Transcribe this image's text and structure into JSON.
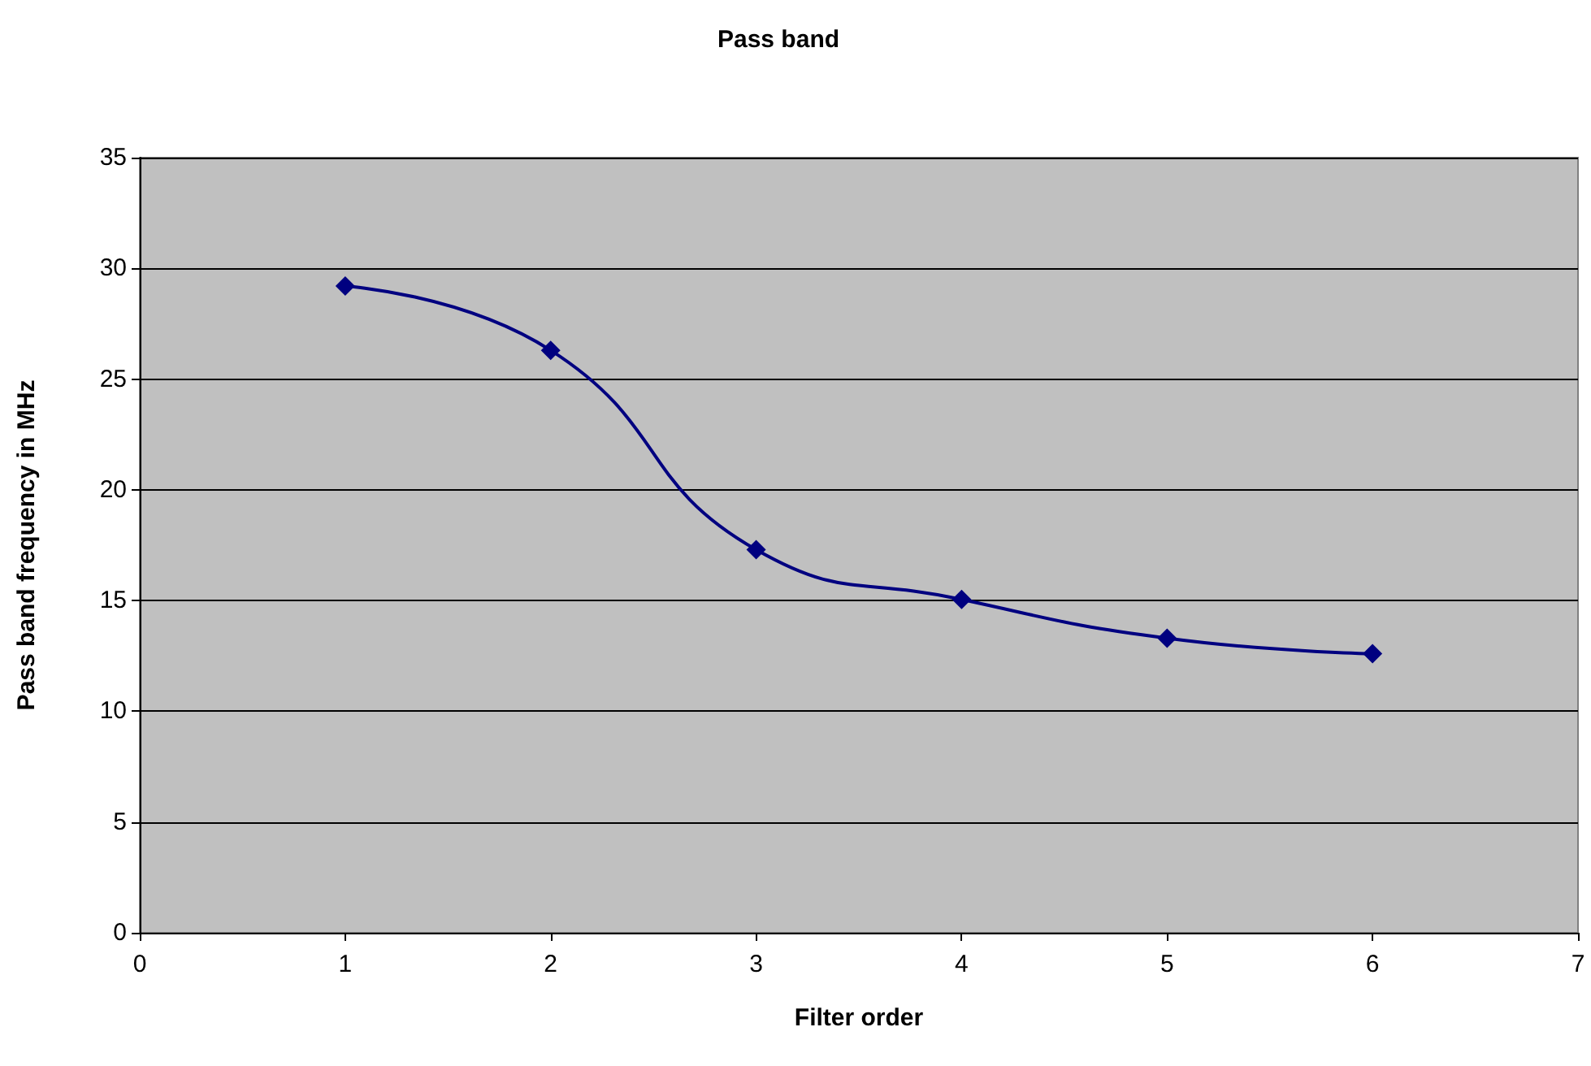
{
  "chart_data": {
    "type": "line",
    "title": "Pass band",
    "xlabel": "Filter order",
    "ylabel": "Pass band frequency in MHz",
    "x": [
      1,
      2,
      3,
      4,
      5,
      6
    ],
    "series": [
      {
        "color": "#000080",
        "values": [
          29.2,
          26.3,
          17.3,
          15.05,
          13.3,
          12.6
        ]
      }
    ],
    "xlim": [
      0,
      7
    ],
    "xticks": [
      0,
      1,
      2,
      3,
      4,
      5,
      6,
      7
    ],
    "ylim": [
      0,
      35
    ],
    "yticks": [
      0,
      5,
      10,
      15,
      20,
      25,
      30,
      35
    ],
    "grid": "y",
    "marker": "diamond",
    "line_style": "solid"
  }
}
